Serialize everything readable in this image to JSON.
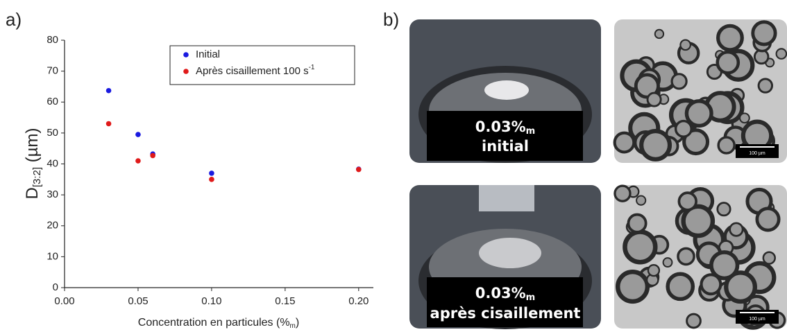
{
  "chart_data": {
    "type": "scatter",
    "x_label": {
      "text": "Concentration en particules (%",
      "sub": "m",
      "end": ")"
    },
    "y_label": {
      "text": "D",
      "sub": "[3:2]",
      "end": " (µm)"
    },
    "xlim": [
      0,
      0.21
    ],
    "ylim": [
      0,
      80
    ],
    "xticks": [
      {
        "value": 0,
        "label": "0.00"
      },
      {
        "value": 0.05,
        "label": "0.05"
      },
      {
        "value": 0.1,
        "label": "0.10"
      },
      {
        "value": 0.15,
        "label": "0.15"
      },
      {
        "value": 0.2,
        "label": "0.20"
      }
    ],
    "yticks": [
      0,
      10,
      20,
      30,
      40,
      50,
      60,
      70,
      80
    ],
    "legend_position": "upper right",
    "series": [
      {
        "name": "Initial",
        "color": "#1a1ae0",
        "x": [
          0.03,
          0.05,
          0.06,
          0.1,
          0.2
        ],
        "values": [
          63.7,
          49.5,
          43.2,
          37,
          38.3
        ]
      },
      {
        "name": "Après cisaillement 100 s",
        "name_sup": "-1",
        "color": "#e01a1a",
        "x": [
          0.03,
          0.05,
          0.06,
          0.1,
          0.2
        ],
        "values": [
          53,
          41,
          42.7,
          35,
          38.2
        ]
      }
    ]
  },
  "panel_labels": [
    "a)",
    "b)"
  ],
  "photos": [
    {
      "main": "0.03%",
      "sub": "m",
      "line2": "initial",
      "scale_bar": "100 µm"
    },
    {
      "main": "0.03%",
      "sub": "m",
      "line2": "après cisaillement",
      "scale_bar": "100 µm"
    }
  ]
}
